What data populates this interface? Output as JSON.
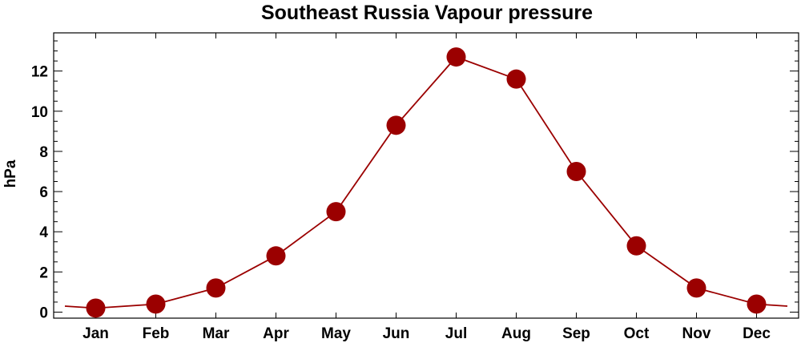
{
  "chart_data": {
    "type": "line",
    "title": "Southeast Russia Vapour pressure",
    "xlabel": "",
    "ylabel": "hPa",
    "categories": [
      "Jan",
      "Feb",
      "Mar",
      "Apr",
      "May",
      "Jun",
      "Jul",
      "Aug",
      "Sep",
      "Oct",
      "Nov",
      "Dec"
    ],
    "values": [
      0.2,
      0.4,
      1.2,
      2.8,
      5.0,
      9.3,
      12.7,
      11.6,
      7.0,
      3.3,
      1.2,
      0.4
    ],
    "ylim": [
      -0.3,
      13.9
    ],
    "yticks": [
      0,
      2,
      4,
      6,
      8,
      10,
      12
    ],
    "ytick_labels": [
      "0",
      "2",
      "4",
      "6",
      "8",
      "10",
      "12"
    ],
    "minor_tick_step": 0.5,
    "edge_values": [
      0.3,
      0.3
    ],
    "grid": false,
    "legend": "none",
    "color": "#9b0000"
  }
}
